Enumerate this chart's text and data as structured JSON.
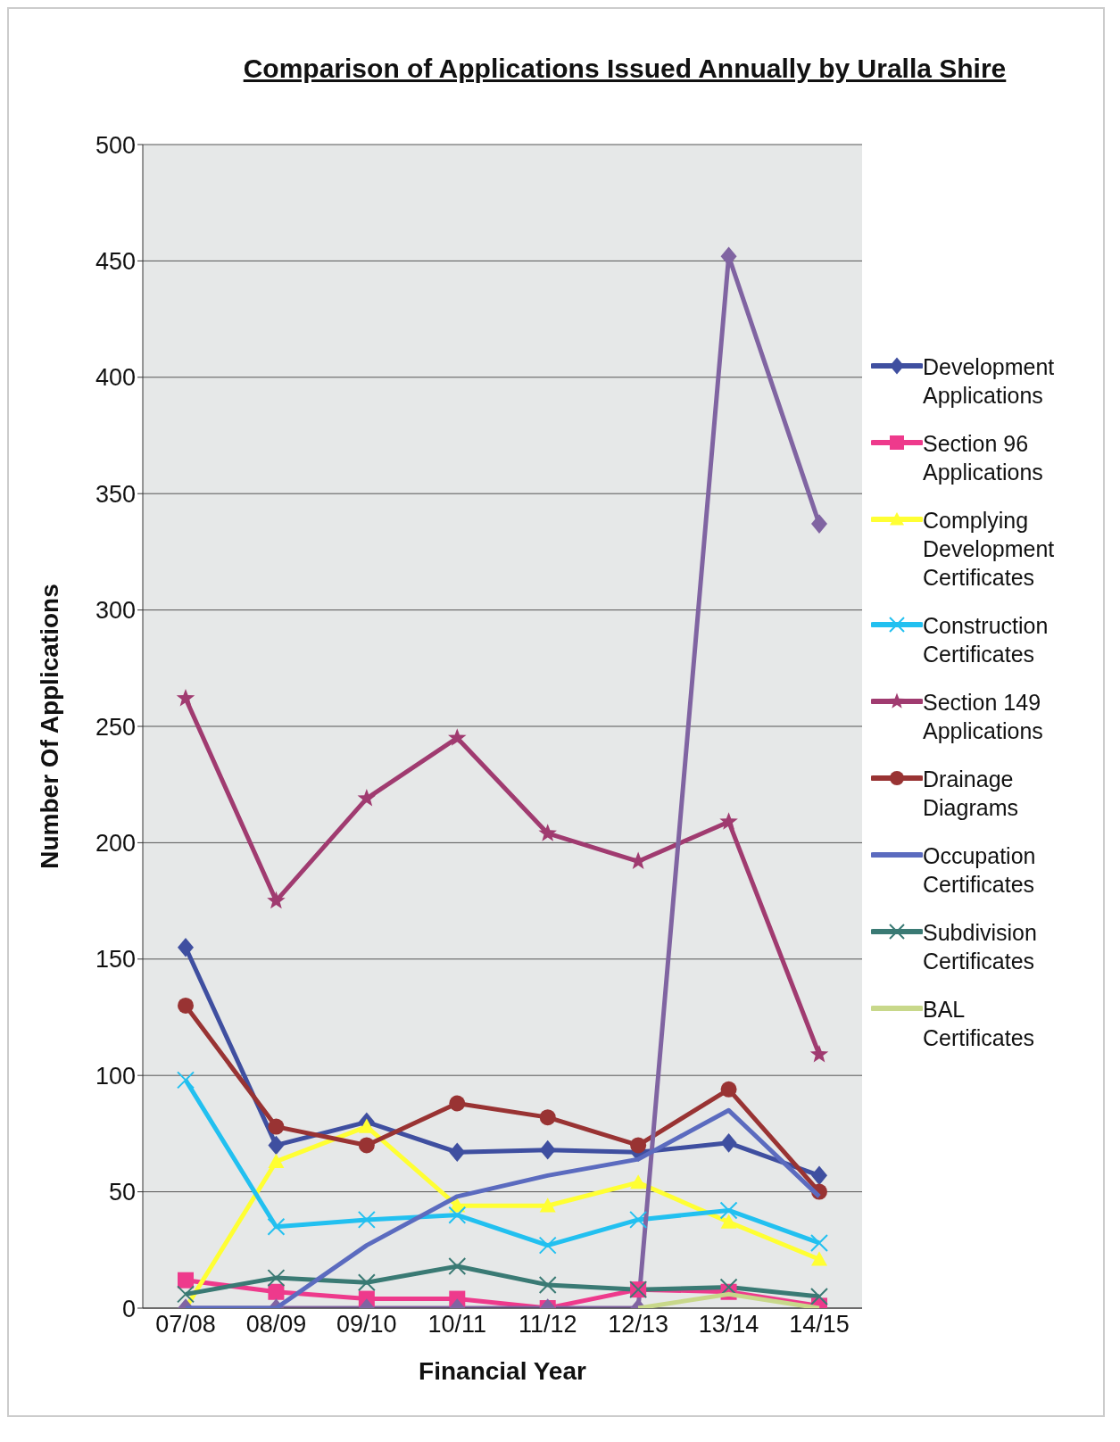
{
  "chart_data": {
    "type": "line",
    "title": "Comparison of Applications Issued Annually by Uralla Shire",
    "xlabel": "Financial Year",
    "ylabel": "Number Of Applications",
    "categories": [
      "07/08",
      "08/09",
      "09/10",
      "10/11",
      "11/12",
      "12/13",
      "13/14",
      "14/15"
    ],
    "ylim": [
      0,
      500
    ],
    "yticks": [
      0,
      50,
      100,
      150,
      200,
      250,
      300,
      350,
      400,
      450,
      500
    ],
    "grid": "y",
    "legend": "right",
    "series": [
      {
        "name": "Development Applications",
        "color": "#3f4fa0",
        "marker": "diamond",
        "values": [
          155,
          70,
          80,
          67,
          68,
          67,
          71,
          57
        ]
      },
      {
        "name": "Section 96 Applications",
        "color": "#ee3a8c",
        "marker": "square",
        "values": [
          12,
          7,
          4,
          4,
          0,
          8,
          7,
          1
        ]
      },
      {
        "name": "Complying Development Certificates",
        "color": "#ffff33",
        "marker": "triangle",
        "values": [
          0,
          63,
          78,
          44,
          44,
          54,
          37,
          21
        ]
      },
      {
        "name": "Construction Certificates",
        "color": "#22c0f0",
        "marker": "cross",
        "values": [
          98,
          35,
          38,
          40,
          27,
          38,
          42,
          28
        ]
      },
      {
        "name": "Section 149 Applications",
        "color": "#a03b70",
        "marker": "star",
        "values": [
          262,
          175,
          219,
          245,
          204,
          192,
          209,
          109
        ]
      },
      {
        "name": "Drainage Diagrams",
        "color": "#993333",
        "marker": "circle",
        "values": [
          130,
          78,
          70,
          88,
          82,
          70,
          94,
          50
        ]
      },
      {
        "name": "Occupation Certificates",
        "color": "#5b6bbf",
        "marker": "none",
        "values": [
          0,
          0,
          27,
          48,
          57,
          64,
          85,
          48
        ]
      },
      {
        "name": "Subdivision Certificates",
        "color": "#3a7a74",
        "marker": "cross",
        "values": [
          6,
          13,
          11,
          18,
          10,
          8,
          9,
          5
        ]
      },
      {
        "name": "BAL Certificates",
        "color": "#c8d88a",
        "marker": "none",
        "values": [
          null,
          null,
          null,
          null,
          null,
          0,
          6,
          0
        ]
      },
      {
        "color": "#8064a2",
        "marker": "diamond",
        "values": [
          0,
          0,
          0,
          0,
          0,
          0,
          452,
          337
        ]
      }
    ]
  }
}
